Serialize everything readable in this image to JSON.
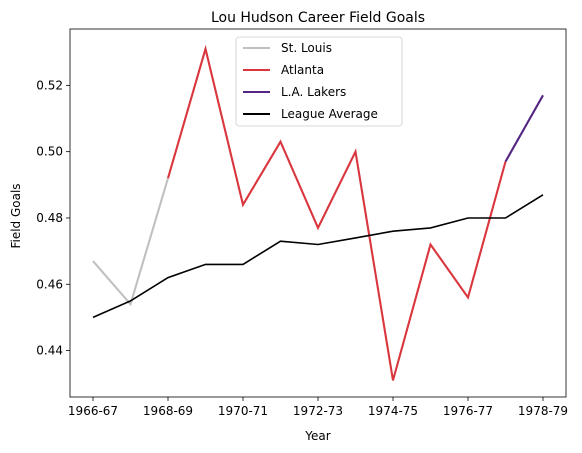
{
  "chart_data": {
    "type": "line",
    "title": "Lou Hudson Career Field Goals",
    "xlabel": "Year",
    "ylabel": "Field Goals",
    "x": [
      "1966-67",
      "1967-68",
      "1968-69",
      "1969-70",
      "1970-71",
      "1971-72",
      "1972-73",
      "1973-74",
      "1974-75",
      "1975-76",
      "1976-77",
      "1977-78",
      "1978-79"
    ],
    "x_tick_labels": [
      "1966-67",
      "1968-69",
      "1970-71",
      "1972-73",
      "1974-75",
      "1976-77",
      "1978-79"
    ],
    "y_ticks": [
      "0.44",
      "0.46",
      "0.48",
      "0.50",
      "0.52"
    ],
    "ylim": [
      0.426,
      0.537
    ],
    "grid": false,
    "legend_position": "top-center",
    "series": [
      {
        "name": "St. Louis",
        "color": "#c0c0c0",
        "points": [
          [
            "1966-67",
            0.467
          ],
          [
            "1967-68",
            0.454
          ],
          [
            "1968-69",
            0.492
          ]
        ]
      },
      {
        "name": "Atlanta",
        "color": "#d9363e",
        "points": [
          [
            "1968-69",
            0.492
          ],
          [
            "1969-70",
            0.531
          ],
          [
            "1970-71",
            0.484
          ],
          [
            "1971-72",
            0.503
          ],
          [
            "1972-73",
            0.477
          ],
          [
            "1973-74",
            0.5
          ],
          [
            "1974-75",
            0.431
          ],
          [
            "1975-76",
            0.472
          ],
          [
            "1976-77",
            0.456
          ],
          [
            "1977-78",
            0.497
          ]
        ]
      },
      {
        "name": "L.A. Lakers",
        "color": "#552583",
        "points": [
          [
            "1977-78",
            0.497
          ],
          [
            "1978-79",
            0.517
          ]
        ]
      },
      {
        "name": "League Average",
        "color": "#000000",
        "points": [
          [
            "1966-67",
            0.45
          ],
          [
            "1967-68",
            0.455
          ],
          [
            "1968-69",
            0.462
          ],
          [
            "1969-70",
            0.466
          ],
          [
            "1970-71",
            0.466
          ],
          [
            "1971-72",
            0.473
          ],
          [
            "1972-73",
            0.472
          ],
          [
            "1973-74",
            0.474
          ],
          [
            "1974-75",
            0.476
          ],
          [
            "1975-76",
            0.477
          ],
          [
            "1976-77",
            0.48
          ],
          [
            "1977-78",
            0.48
          ],
          [
            "1978-79",
            0.487
          ]
        ]
      }
    ]
  }
}
